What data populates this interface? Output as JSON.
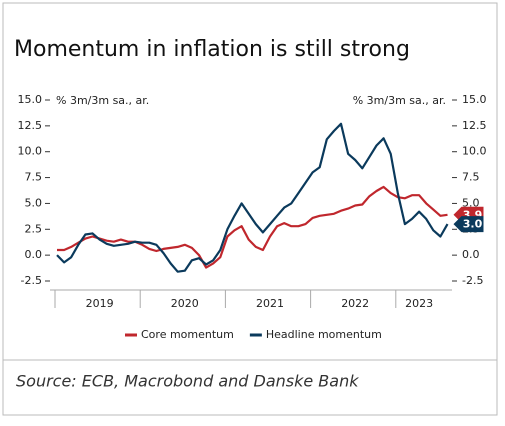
{
  "chart_data": {
    "type": "line",
    "title": "Momentum in inflation is still strong",
    "y_label": "% 3m/3m sa., ar.",
    "y2_label": "% 3m/3m sa., ar.",
    "source": "Source: ECB, Macrobond and Danske Bank",
    "categories": [
      null,
      null,
      null,
      null,
      null,
      null,
      "2019",
      null,
      null,
      null,
      null,
      null,
      null,
      null,
      null,
      null,
      null,
      null,
      "2020",
      null,
      null,
      null,
      null,
      null,
      null,
      null,
      null,
      null,
      null,
      null,
      "2021",
      null,
      null,
      null,
      null,
      null,
      null,
      null,
      null,
      null,
      null,
      null,
      "2022",
      null,
      null,
      null,
      null,
      null,
      null,
      null,
      null,
      "2023",
      null,
      null,
      null,
      null
    ],
    "series": [
      {
        "name": "Core momentum",
        "color": "#c0272d",
        "values": [
          0.5,
          0.5,
          0.8,
          1.2,
          1.6,
          1.8,
          1.6,
          1.4,
          1.3,
          1.5,
          1.3,
          1.3,
          1.0,
          0.6,
          0.4,
          0.6,
          0.7,
          0.8,
          1.0,
          0.7,
          0.0,
          -1.2,
          -0.8,
          -0.2,
          1.8,
          2.4,
          2.8,
          1.5,
          0.8,
          0.5,
          1.8,
          2.8,
          3.1,
          2.8,
          2.8,
          3.0,
          3.6,
          3.8,
          3.9,
          4.0,
          4.3,
          4.5,
          4.8,
          4.9,
          5.7,
          6.2,
          6.6,
          6.0,
          5.6,
          5.5,
          5.8,
          5.8,
          5.0,
          4.4,
          3.8,
          3.9
        ],
        "value_labels": [
          null,
          null,
          null,
          null,
          null,
          null,
          null,
          null,
          null,
          null,
          null,
          null,
          null,
          null,
          null,
          null,
          null,
          null,
          null,
          null,
          null,
          null,
          null,
          null,
          null,
          null,
          null,
          null,
          null,
          null,
          null,
          null,
          null,
          null,
          null,
          null,
          null,
          null,
          null,
          null,
          null,
          null,
          null,
          null,
          null,
          null,
          null,
          null,
          null,
          null,
          null,
          null,
          null,
          null,
          null,
          "3.9"
        ]
      },
      {
        "name": "Headline momentum",
        "color": "#0b3a5c",
        "values": [
          0.0,
          -0.7,
          -0.2,
          1.0,
          2.0,
          2.1,
          1.5,
          1.1,
          0.9,
          1.0,
          1.1,
          1.3,
          1.2,
          1.2,
          1.0,
          0.2,
          -0.8,
          -1.6,
          -1.5,
          -0.5,
          -0.3,
          -0.9,
          -0.5,
          0.5,
          2.5,
          3.8,
          5.0,
          4.0,
          3.0,
          2.2,
          3.0,
          3.8,
          4.6,
          5.0,
          6.0,
          7.0,
          8.0,
          8.5,
          11.2,
          12.0,
          12.7,
          9.8,
          9.2,
          8.4,
          9.5,
          10.6,
          11.3,
          9.8,
          6.0,
          3.0,
          3.5,
          4.2,
          3.5,
          2.4,
          1.8,
          3.0
        ],
        "value_labels": [
          null,
          null,
          null,
          null,
          null,
          null,
          null,
          null,
          null,
          null,
          null,
          null,
          null,
          null,
          null,
          null,
          null,
          null,
          null,
          null,
          null,
          null,
          null,
          null,
          null,
          null,
          null,
          null,
          null,
          null,
          null,
          null,
          null,
          null,
          null,
          null,
          null,
          null,
          null,
          null,
          null,
          null,
          null,
          null,
          null,
          null,
          null,
          null,
          null,
          null,
          null,
          null,
          null,
          null,
          null,
          "3.0"
        ]
      }
    ],
    "ylim": [
      -2.5,
      15.0
    ],
    "yticks": [
      {
        "value": -2.5,
        "label": "-2.5"
      },
      {
        "value": 0,
        "label": "0.0"
      },
      {
        "value": 2.5,
        "label": "2.5"
      },
      {
        "value": 5,
        "label": "5.0"
      },
      {
        "value": 7.5,
        "label": "7.5"
      },
      {
        "value": 10,
        "label": "10.0"
      },
      {
        "value": 12.5,
        "label": "12.5"
      },
      {
        "value": 15,
        "label": "15.0"
      }
    ],
    "y2lim": [
      -2.5,
      15.0
    ],
    "y2ticks": [
      {
        "value": -2.5,
        "label": "-2.5"
      },
      {
        "value": 0,
        "label": "0.0"
      },
      {
        "value": 2.5,
        "label": "2.5"
      },
      {
        "value": 5,
        "label": "5.0"
      },
      {
        "value": 7.5,
        "label": "7.5"
      },
      {
        "value": 10,
        "label": "10.0"
      },
      {
        "value": 12.5,
        "label": "12.5"
      },
      {
        "value": 15,
        "label": "15.0"
      }
    ],
    "grid": false
  }
}
